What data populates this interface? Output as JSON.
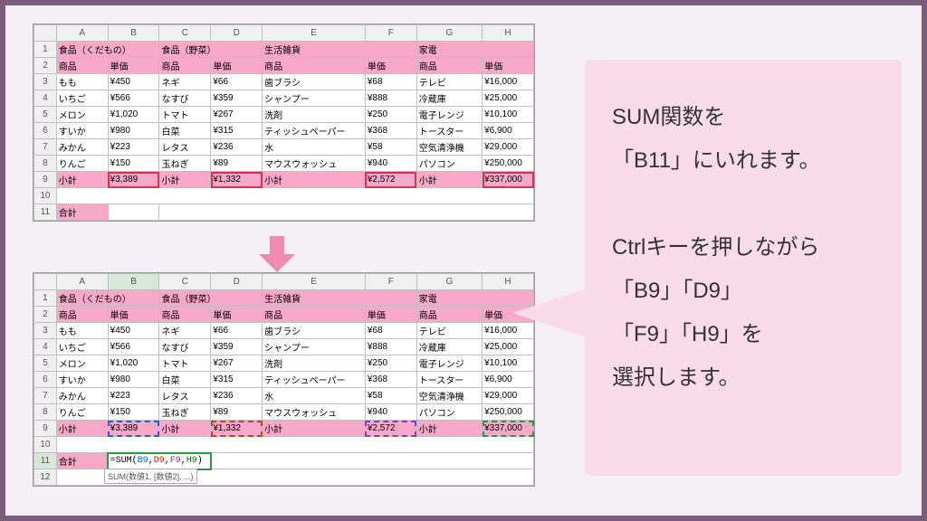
{
  "columns": [
    "A",
    "B",
    "C",
    "D",
    "E",
    "F",
    "G",
    "H"
  ],
  "col_widths": [
    "24px",
    "55px",
    "55px",
    "55px",
    "55px",
    "110px",
    "55px",
    "70px",
    "55px"
  ],
  "headers_cat": [
    {
      "label": "食品（くだもの）",
      "span": 2
    },
    {
      "label": "食品（野菜）",
      "span": 2
    },
    {
      "label": "生活雑貨",
      "span": 2
    },
    {
      "label": "家電",
      "span": 2
    }
  ],
  "headers_sub": [
    "商品",
    "単価",
    "商品",
    "単価",
    "商品",
    "単価",
    "商品",
    "単価"
  ],
  "rows": [
    [
      "もも",
      "¥450",
      "ネギ",
      "¥66",
      "歯ブラシ",
      "¥68",
      "テレビ",
      "¥16,000"
    ],
    [
      "いちご",
      "¥566",
      "なすび",
      "¥359",
      "シャンプー",
      "¥888",
      "冷蔵庫",
      "¥25,000"
    ],
    [
      "メロン",
      "¥1,020",
      "トマト",
      "¥267",
      "洗剤",
      "¥250",
      "電子レンジ",
      "¥10,100"
    ],
    [
      "すいか",
      "¥980",
      "白菜",
      "¥315",
      "ティッシュペーパー",
      "¥368",
      "トースター",
      "¥6,900"
    ],
    [
      "みかん",
      "¥223",
      "レタス",
      "¥236",
      "水",
      "¥58",
      "空気清浄機",
      "¥29,000"
    ],
    [
      "りんご",
      "¥150",
      "玉ねぎ",
      "¥89",
      "マウスウォッシュ",
      "¥940",
      "パソコン",
      "¥250,000"
    ]
  ],
  "subtotal_label": "小計",
  "subtotals": [
    "¥3,389",
    "¥1,332",
    "¥2,572",
    "¥337,000"
  ],
  "grand_label": "合計",
  "formula_prefix": "=SUM(",
  "formula_args": [
    "B9",
    "D9",
    "F9",
    "H9"
  ],
  "formula_suffix": ")",
  "tooltip": "SUM(数値1, [数値2], ...)",
  "bubble_lines": [
    "SUM関数を",
    "「B11」にいれます。",
    "",
    "Ctrlキーを押しながら",
    "「B9」「D9」",
    "「F9」「H9」を",
    "選択します。"
  ],
  "colors": {
    "pink": "#f8a8c8",
    "bubble": "#fadbe8",
    "frame": "#7a5c7a",
    "arrow": "#f08ab0",
    "red_outline": "#e03050",
    "dash_blue": "#2060d0",
    "dash_red": "#d04020",
    "dash_purple": "#8040c0",
    "dash_green": "#20a040"
  }
}
